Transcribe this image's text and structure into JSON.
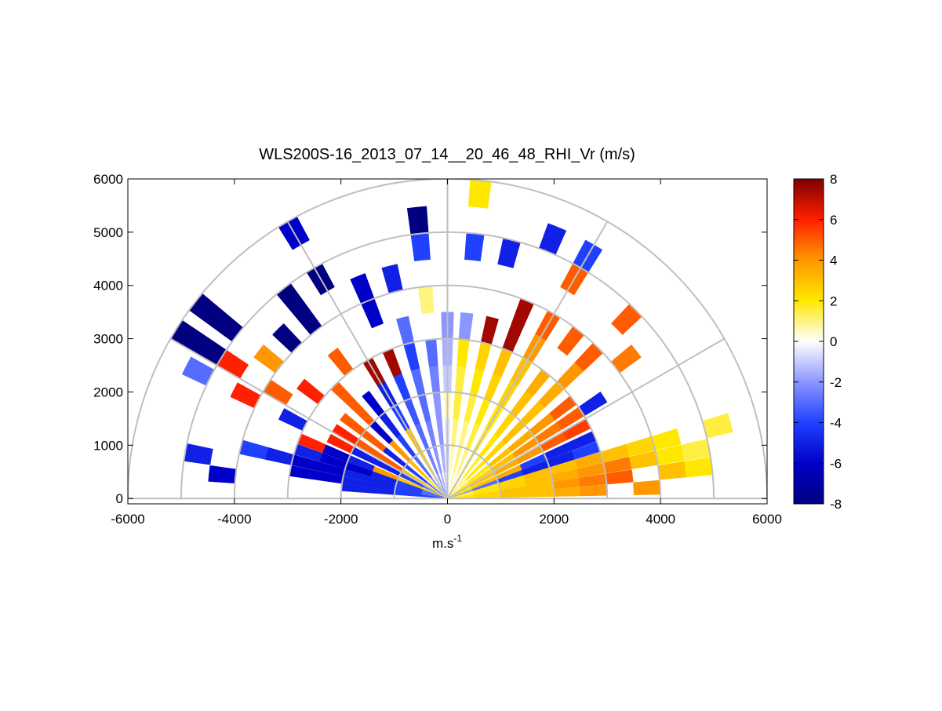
{
  "chart_data": {
    "type": "rhi",
    "title": "WLS200S-16_2013_07_14__20_46_48_RHI_Vr (m/s)",
    "xlabel": {
      "text": "m.s",
      "superscript": "-1"
    },
    "xlim": [
      -6000,
      6000
    ],
    "ylim": [
      -100,
      6000
    ],
    "xticks": [
      -6000,
      -4000,
      -2000,
      0,
      2000,
      4000,
      6000
    ],
    "yticks": [
      0,
      1000,
      2000,
      3000,
      4000,
      5000,
      6000
    ],
    "polar_rings": [
      1000,
      2000,
      3000,
      4000,
      5000,
      6000
    ],
    "polar_spokes": [
      0,
      30,
      60,
      90,
      120,
      150,
      180
    ],
    "clim": [
      -8,
      8
    ],
    "colorbar_ticks": [
      -8,
      -6,
      -4,
      -2,
      0,
      2,
      4,
      6,
      8
    ],
    "colormap": [
      "#000080",
      "#0000c8",
      "#2040ff",
      "#8c96ff",
      "#ffffff",
      "#ffe800",
      "#ff9800",
      "#ff2000",
      "#800000"
    ],
    "ranges": [
      250,
      750,
      1250,
      1750,
      2250,
      2750,
      3250,
      3750,
      4250,
      4750,
      5250,
      5750
    ],
    "angles": [
      3,
      7,
      11,
      15,
      19,
      23,
      28,
      33,
      38,
      45,
      52,
      60,
      68,
      76,
      84,
      90,
      96,
      104,
      112,
      120,
      128,
      135,
      142,
      148,
      153,
      158,
      162,
      166,
      170,
      174
    ],
    "values": [
      [
        2,
        2.5,
        3,
        3,
        3.5,
        4,
        null,
        4,
        null,
        null,
        null,
        null
      ],
      [
        2,
        2.5,
        3,
        3,
        4,
        4.5,
        5,
        null,
        3,
        2,
        null,
        null
      ],
      [
        1.5,
        2,
        2.5,
        3,
        3.5,
        4,
        4.5,
        3,
        2,
        1.5,
        null,
        null
      ],
      [
        1.5,
        2,
        2.5,
        3,
        3,
        3.5,
        3,
        2.5,
        2,
        null,
        1.5,
        null
      ],
      [
        -2,
        -3,
        -4,
        -5,
        -5,
        -4,
        null,
        null,
        null,
        null,
        null,
        null
      ],
      [
        2,
        3,
        3.5,
        -4,
        -5,
        -5,
        null,
        null,
        null,
        null,
        null,
        null
      ],
      [
        2,
        3,
        3.5,
        4,
        5,
        5.5,
        null,
        null,
        null,
        null,
        null,
        null
      ],
      [
        2,
        2.5,
        3,
        4,
        4.5,
        5,
        -5,
        null,
        null,
        null,
        null,
        null
      ],
      [
        1.5,
        2,
        3,
        3.5,
        4,
        5,
        null,
        null,
        4.5,
        null,
        null,
        null
      ],
      [
        1,
        2,
        2.5,
        3,
        3,
        3.5,
        4,
        5,
        null,
        5,
        null,
        null
      ],
      [
        1,
        1.5,
        2,
        2.5,
        3,
        3.5,
        null,
        5,
        null,
        null,
        null,
        null
      ],
      [
        0.5,
        1,
        1.5,
        2,
        2.5,
        3,
        4,
        5,
        null,
        5,
        -4,
        null
      ],
      [
        0.5,
        1,
        1.5,
        2,
        2.5,
        3,
        7.5,
        7.5,
        null,
        null,
        -5,
        null
      ],
      [
        0.5,
        1,
        1,
        1.5,
        2,
        2.5,
        7.5,
        null,
        null,
        -5,
        null,
        null
      ],
      [
        0.3,
        0.5,
        1,
        1.5,
        1.5,
        2,
        -2,
        null,
        null,
        -4,
        null,
        2
      ],
      [
        -0.5,
        -1,
        -0.5,
        0.5,
        -1,
        -1.5,
        -2,
        null,
        null,
        null,
        null,
        null
      ],
      [
        -1,
        -1.5,
        -2,
        -2,
        -2.5,
        -3,
        null,
        1,
        null,
        -4,
        -8,
        null
      ],
      [
        -1.5,
        -2,
        -2.5,
        -3,
        -3,
        -4,
        -3,
        null,
        -5,
        null,
        null,
        null
      ],
      [
        -2,
        -2.5,
        -3,
        -3.5,
        -4,
        7.5,
        null,
        -6,
        -6,
        null,
        null,
        null
      ],
      [
        2,
        2.5,
        3,
        -4,
        -5,
        7.5,
        null,
        null,
        null,
        -8,
        null,
        -6
      ],
      [
        -2,
        -3,
        -4,
        -5,
        -6,
        null,
        5,
        null,
        -8,
        -8,
        null,
        null
      ],
      [
        2,
        3,
        4,
        -6,
        5,
        5,
        null,
        null,
        -8,
        null,
        null,
        null
      ],
      [
        -3,
        -4,
        -5,
        5,
        5,
        null,
        6,
        null,
        4,
        null,
        -8,
        -8
      ],
      [
        2,
        3,
        5,
        5,
        6,
        null,
        null,
        5,
        null,
        6,
        -8,
        -8
      ],
      [
        -3,
        -4,
        -5,
        -5,
        6,
        null,
        -5,
        null,
        6,
        null,
        -3,
        null
      ],
      [
        2,
        3,
        4,
        -5,
        -6,
        6,
        null,
        null,
        null,
        null,
        null,
        null
      ],
      [
        -3,
        -4,
        -5,
        -6,
        -6,
        -5,
        null,
        null,
        null,
        null,
        null,
        null
      ],
      [
        -3,
        -4,
        -5,
        -5,
        -6,
        -6,
        -5,
        -4,
        null,
        null,
        null,
        null
      ],
      [
        -3,
        -4,
        -5,
        -5,
        -6,
        -6,
        null,
        null,
        null,
        -5,
        null,
        null
      ],
      [
        -4,
        -4,
        -5,
        -5,
        null,
        null,
        null,
        null,
        -6,
        null,
        null,
        null
      ]
    ]
  }
}
